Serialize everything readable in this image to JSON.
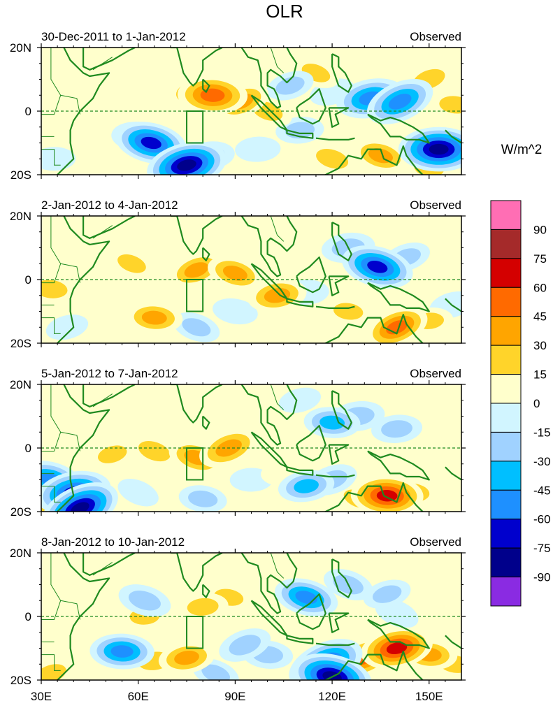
{
  "chart_data": {
    "type": "heatmap",
    "title": "OLR",
    "units": "W/m^2",
    "xlim": [
      30,
      160
    ],
    "ylim": [
      -20,
      20
    ],
    "x_ticks": [
      {
        "value": 30,
        "label": "30E"
      },
      {
        "value": 60,
        "label": "60E"
      },
      {
        "value": 90,
        "label": "90E"
      },
      {
        "value": 120,
        "label": "120E"
      },
      {
        "value": 150,
        "label": "150E"
      }
    ],
    "y_ticks": [
      {
        "value": 20,
        "label": "20N"
      },
      {
        "value": 0,
        "label": "0"
      },
      {
        "value": -20,
        "label": "20S"
      }
    ],
    "colorbar": {
      "levels": [
        "90",
        "75",
        "60",
        "45",
        "30",
        "15",
        "0",
        "-15",
        "-30",
        "-45",
        "-60",
        "-75",
        "-90"
      ],
      "colors": [
        "#ff6eb4",
        "#a52a2a",
        "#d40000",
        "#ff6a00",
        "#ffa500",
        "#ffd42a",
        "#ffffcc",
        "#d1f5ff",
        "#a0d2ff",
        "#00bfff",
        "#1e90ff",
        "#0000cd",
        "#00008b",
        "#8a2be2"
      ]
    },
    "panels": [
      {
        "left_title": "30-Dec-2011 to 1-Jan-2012",
        "right_title": "Observed",
        "features": [
          {
            "lon": 83,
            "lat": 5,
            "value": 70
          },
          {
            "lon": 78,
            "lat": 6,
            "value": 45
          },
          {
            "lon": 92,
            "lat": 3,
            "value": 45
          },
          {
            "lon": 100,
            "lat": 0,
            "value": 35
          },
          {
            "lon": 72,
            "lat": 10,
            "value": 25
          },
          {
            "lon": 38,
            "lat": 12,
            "value": 25
          },
          {
            "lon": 48,
            "lat": 14,
            "value": 20
          },
          {
            "lon": 63,
            "lat": 14,
            "value": 18
          },
          {
            "lon": 36,
            "lat": -4,
            "value": 22
          },
          {
            "lon": 115,
            "lat": 12,
            "value": 30
          },
          {
            "lon": 150,
            "lat": 10,
            "value": 40
          },
          {
            "lon": 158,
            "lat": 2,
            "value": 35
          },
          {
            "lon": 120,
            "lat": -15,
            "value": 40
          },
          {
            "lon": 135,
            "lat": -14,
            "value": 45
          },
          {
            "lon": 150,
            "lat": -18,
            "value": 30
          },
          {
            "lon": 132,
            "lat": 4,
            "value": -70
          },
          {
            "lon": 141,
            "lat": 3,
            "value": -70
          },
          {
            "lon": 153,
            "lat": -12,
            "value": -90
          },
          {
            "lon": 64,
            "lat": -10,
            "value": -75
          },
          {
            "lon": 75,
            "lat": -17,
            "value": -90
          },
          {
            "lon": 60,
            "lat": -8,
            "value": -40
          },
          {
            "lon": 82,
            "lat": -14,
            "value": -35
          },
          {
            "lon": 97,
            "lat": -12,
            "value": -25
          },
          {
            "lon": 110,
            "lat": -6,
            "value": -30
          },
          {
            "lon": 120,
            "lat": 6,
            "value": -25
          },
          {
            "lon": 107,
            "lat": 8,
            "value": -30
          },
          {
            "lon": 34,
            "lat": -15,
            "value": -20
          }
        ]
      },
      {
        "left_title": "2-Jan-2012 to 4-Jan-2012",
        "right_title": "Observed",
        "features": [
          {
            "lon": 78,
            "lat": 3,
            "value": 45
          },
          {
            "lon": 90,
            "lat": 2,
            "value": 45
          },
          {
            "lon": 103,
            "lat": -5,
            "value": 50
          },
          {
            "lon": 58,
            "lat": 5,
            "value": 30
          },
          {
            "lon": 65,
            "lat": -12,
            "value": 45
          },
          {
            "lon": 33,
            "lat": -3,
            "value": 40
          },
          {
            "lon": 72,
            "lat": 12,
            "value": 20
          },
          {
            "lon": 40,
            "lat": 13,
            "value": 18
          },
          {
            "lon": 140,
            "lat": -15,
            "value": 60
          },
          {
            "lon": 125,
            "lat": -10,
            "value": 30
          },
          {
            "lon": 150,
            "lat": -13,
            "value": 30
          },
          {
            "lon": 155,
            "lat": 12,
            "value": 20
          },
          {
            "lon": 110,
            "lat": 14,
            "value": 25
          },
          {
            "lon": 134,
            "lat": 4,
            "value": -75
          },
          {
            "lon": 125,
            "lat": 10,
            "value": -40
          },
          {
            "lon": 143,
            "lat": 7,
            "value": -30
          },
          {
            "lon": 78,
            "lat": -15,
            "value": -30
          },
          {
            "lon": 90,
            "lat": -10,
            "value": -25
          },
          {
            "lon": 112,
            "lat": -4,
            "value": -25
          },
          {
            "lon": 38,
            "lat": -15,
            "value": -20
          },
          {
            "lon": 157,
            "lat": -8,
            "value": -25
          }
        ]
      },
      {
        "left_title": "5-Jan-2012 to 7-Jan-2012",
        "right_title": "Observed",
        "features": [
          {
            "lon": 78,
            "lat": -3,
            "value": 45
          },
          {
            "lon": 88,
            "lat": 0,
            "value": 55
          },
          {
            "lon": 65,
            "lat": -1,
            "value": 40
          },
          {
            "lon": 52,
            "lat": -2,
            "value": 30
          },
          {
            "lon": 100,
            "lat": -2,
            "value": 25
          },
          {
            "lon": 105,
            "lat": -8,
            "value": 25
          },
          {
            "lon": 137,
            "lat": -15,
            "value": 75
          },
          {
            "lon": 145,
            "lat": -14,
            "value": 40
          },
          {
            "lon": 128,
            "lat": -16,
            "value": 30
          },
          {
            "lon": 152,
            "lat": 10,
            "value": 18
          },
          {
            "lon": 92,
            "lat": 12,
            "value": 15
          },
          {
            "lon": 40,
            "lat": -14,
            "value": -80
          },
          {
            "lon": 33,
            "lat": -10,
            "value": -60
          },
          {
            "lon": 42,
            "lat": -19,
            "value": -90
          },
          {
            "lon": 120,
            "lat": 8,
            "value": -45
          },
          {
            "lon": 128,
            "lat": 10,
            "value": -40
          },
          {
            "lon": 140,
            "lat": 6,
            "value": -35
          },
          {
            "lon": 112,
            "lat": -12,
            "value": -45
          },
          {
            "lon": 120,
            "lat": -10,
            "value": -35
          },
          {
            "lon": 95,
            "lat": -10,
            "value": -20
          },
          {
            "lon": 80,
            "lat": -16,
            "value": -30
          },
          {
            "lon": 110,
            "lat": 15,
            "value": -20
          },
          {
            "lon": 60,
            "lat": -14,
            "value": -20
          },
          {
            "lon": 30,
            "lat": -18,
            "value": 40
          }
        ]
      },
      {
        "left_title": "8-Jan-2012 to 10-Jan-2012",
        "right_title": "Observed",
        "features": [
          {
            "lon": 140,
            "lat": -10,
            "value": 75
          },
          {
            "lon": 130,
            "lat": -13,
            "value": 60
          },
          {
            "lon": 150,
            "lat": -12,
            "value": 45
          },
          {
            "lon": 158,
            "lat": -15,
            "value": 35
          },
          {
            "lon": 75,
            "lat": -13,
            "value": 45
          },
          {
            "lon": 65,
            "lat": -14,
            "value": 40
          },
          {
            "lon": 80,
            "lat": 3,
            "value": 35
          },
          {
            "lon": 88,
            "lat": 6,
            "value": 30
          },
          {
            "lon": 62,
            "lat": 0,
            "value": 30
          },
          {
            "lon": 97,
            "lat": -3,
            "value": 25
          },
          {
            "lon": 33,
            "lat": -18,
            "value": 35
          },
          {
            "lon": 54,
            "lat": 14,
            "value": 20
          },
          {
            "lon": 78,
            "lat": 13,
            "value": 20
          },
          {
            "lon": 148,
            "lat": 12,
            "value": 18
          },
          {
            "lon": 118,
            "lat": -15,
            "value": -85
          },
          {
            "lon": 120,
            "lat": -19,
            "value": -90
          },
          {
            "lon": 112,
            "lat": 6,
            "value": -60
          },
          {
            "lon": 55,
            "lat": -11,
            "value": -60
          },
          {
            "lon": 93,
            "lat": -9,
            "value": -40
          },
          {
            "lon": 125,
            "lat": 10,
            "value": -35
          },
          {
            "lon": 137,
            "lat": 7,
            "value": -30
          },
          {
            "lon": 62,
            "lat": 5,
            "value": -40
          },
          {
            "lon": 100,
            "lat": -12,
            "value": -35
          },
          {
            "lon": 140,
            "lat": 1,
            "value": -25
          },
          {
            "lon": 84,
            "lat": -18,
            "value": -30
          }
        ]
      }
    ]
  }
}
